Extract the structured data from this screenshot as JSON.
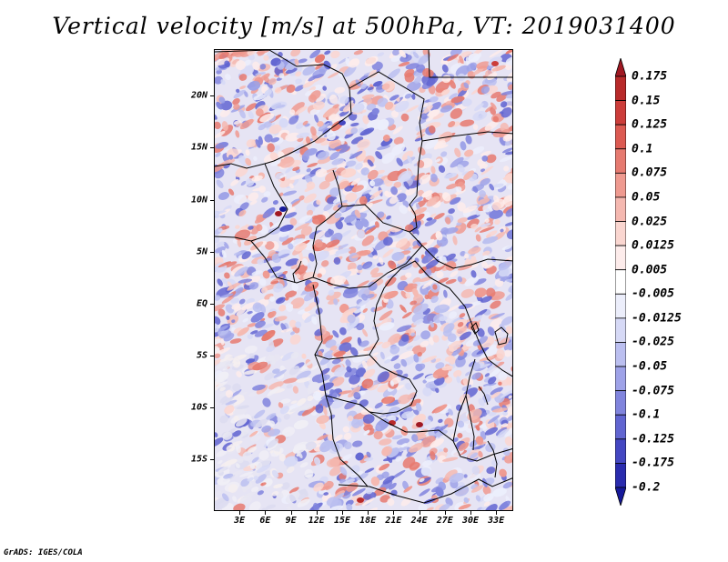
{
  "title": "Vertical velocity [m/s] at 500hPa, VT: 2019031400",
  "credit": "GrADS: IGES/COLA",
  "map": {
    "lat_labels": [
      "20N",
      "15N",
      "10N",
      "5N",
      "EQ",
      "5S",
      "10S",
      "15S"
    ],
    "lon_labels": [
      "3E",
      "6E",
      "9E",
      "12E",
      "15E",
      "18E",
      "21E",
      "24E",
      "27E",
      "30E",
      "33E"
    ],
    "lat_range": [
      -20,
      24.5
    ],
    "lon_range": [
      0,
      35
    ]
  },
  "colorbar": {
    "labels": [
      "0.175",
      "0.15",
      "0.125",
      "0.1",
      "0.075",
      "0.05",
      "0.025",
      "0.0125",
      "0.005",
      "-0.005",
      "-0.0125",
      "-0.025",
      "-0.05",
      "-0.075",
      "-0.1",
      "-0.125",
      "-0.175",
      "-0.2"
    ],
    "colors": [
      "#a01822",
      "#b82a2a",
      "#cc3d3a",
      "#dc5a52",
      "#e67a70",
      "#ef9a90",
      "#f5b8b0",
      "#fad6d0",
      "#fdeceb",
      "#ffffff",
      "#eceefb",
      "#d6d9f6",
      "#bbbff0",
      "#9ea2e8",
      "#8084dd",
      "#6165d1",
      "#4447c2",
      "#2a2cae",
      "#16199a"
    ]
  }
}
